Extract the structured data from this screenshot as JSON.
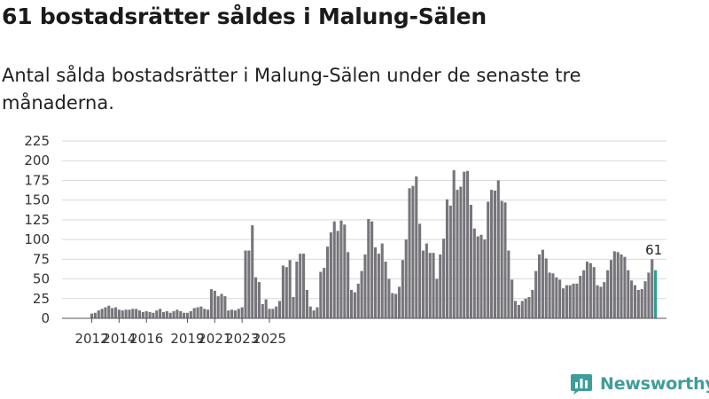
{
  "header": {
    "title": "61 bostadsrätter såldes i Malung-Sälen",
    "subtitle": "Antal sålda bostadsrätter i Malung-Sälen under de senaste tre månaderna."
  },
  "chart_data": {
    "type": "bar",
    "title": "61 bostadsrätter såldes i Malung-Sälen",
    "subtitle": "Antal sålda bostadsrätter i Malung-Sälen under de senaste tre månaderna.",
    "xlabel": "",
    "ylabel": "",
    "x_start": 2012.0,
    "x_step": 0.25,
    "ylim": [
      0,
      225
    ],
    "yticks": [
      0,
      25,
      50,
      75,
      100,
      125,
      150,
      175,
      200,
      225
    ],
    "xticks": [
      2012,
      2014,
      2016,
      2019,
      2021,
      2023,
      2025
    ],
    "grid": true,
    "bar_color": "#77757b",
    "highlight_color": "#2a9d8f",
    "highlight_last": true,
    "last_value_label": "61",
    "values": [
      6,
      7,
      10,
      12,
      14,
      16,
      13,
      14,
      11,
      10,
      11,
      11,
      12,
      12,
      10,
      8,
      9,
      8,
      7,
      10,
      12,
      8,
      9,
      7,
      9,
      11,
      9,
      7,
      7,
      9,
      13,
      14,
      15,
      12,
      11,
      37,
      35,
      28,
      31,
      28,
      10,
      11,
      10,
      12,
      14,
      86,
      86,
      118,
      52,
      46,
      18,
      24,
      12,
      12,
      15,
      22,
      67,
      65,
      74,
      27,
      72,
      82,
      82,
      36,
      15,
      10,
      14,
      59,
      64,
      91,
      109,
      123,
      111,
      124,
      119,
      84,
      36,
      33,
      44,
      60,
      81,
      126,
      123,
      90,
      82,
      95,
      72,
      50,
      32,
      31,
      40,
      74,
      100,
      165,
      168,
      180,
      120,
      86,
      95,
      83,
      83,
      50,
      81,
      101,
      151,
      143,
      188,
      163,
      167,
      186,
      187,
      144,
      114,
      104,
      106,
      100,
      148,
      163,
      162,
      175,
      149,
      147,
      86,
      49,
      22,
      17,
      22,
      25,
      27,
      36,
      60,
      81,
      87,
      76,
      58,
      57,
      52,
      49,
      38,
      42,
      42,
      44,
      44,
      54,
      61,
      72,
      70,
      65,
      42,
      40,
      46,
      61,
      74,
      85,
      84,
      81,
      78,
      61,
      48,
      42,
      36,
      37,
      47,
      58,
      75,
      61
    ]
  },
  "brand": {
    "name": "Newsworthy",
    "icon": "newsworthy-logo-icon",
    "color": "#3f9d99"
  }
}
